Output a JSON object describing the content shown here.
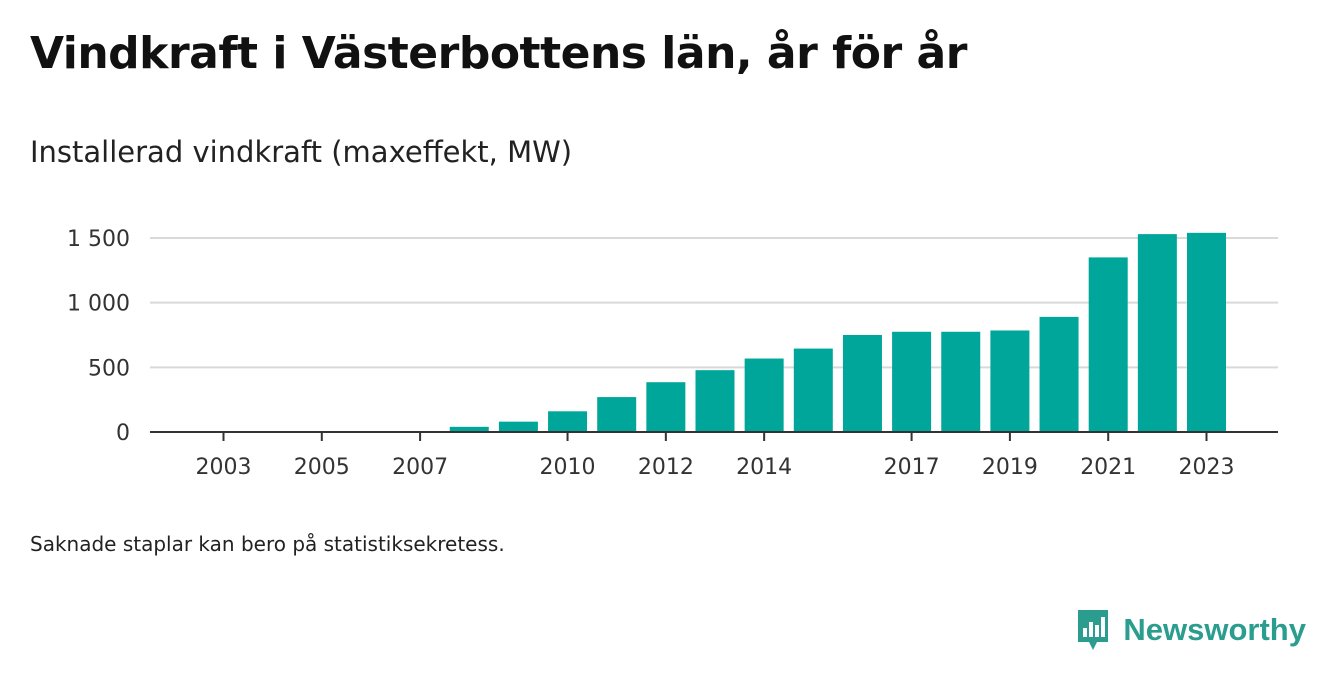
{
  "title": "Vindkraft i Västerbottens län, år för år",
  "subtitle": "Installerad vindkraft (maxeffekt, MW)",
  "note": "Saknade staplar kan bero på statistiksekretess.",
  "brand": {
    "name": "Newsworthy",
    "icon": "newsworthy-logo-icon"
  },
  "colors": {
    "bar": "#00a699",
    "grid": "#d9d9d9",
    "axis": "#333333"
  },
  "chart_data": {
    "type": "bar",
    "years": [
      2003,
      2004,
      2005,
      2006,
      2007,
      2008,
      2009,
      2010,
      2011,
      2012,
      2013,
      2014,
      2015,
      2016,
      2017,
      2018,
      2019,
      2020,
      2021,
      2022,
      2023
    ],
    "values": [
      0,
      0,
      0,
      0,
      0,
      40,
      80,
      160,
      270,
      385,
      478,
      568,
      645,
      750,
      775,
      775,
      785,
      890,
      1350,
      1530,
      1540
    ],
    "x_tick_labels": [
      "2003",
      "2005",
      "2007",
      "2010",
      "2012",
      "2014",
      "2017",
      "2019",
      "2021",
      "2023"
    ],
    "y_tick_values": [
      0,
      500,
      1000,
      1500
    ],
    "y_tick_labels": [
      "0",
      "500",
      "1 000",
      "1 500"
    ],
    "ylim": [
      0,
      1500
    ],
    "grid": true,
    "xlabel": "",
    "ylabel": ""
  }
}
